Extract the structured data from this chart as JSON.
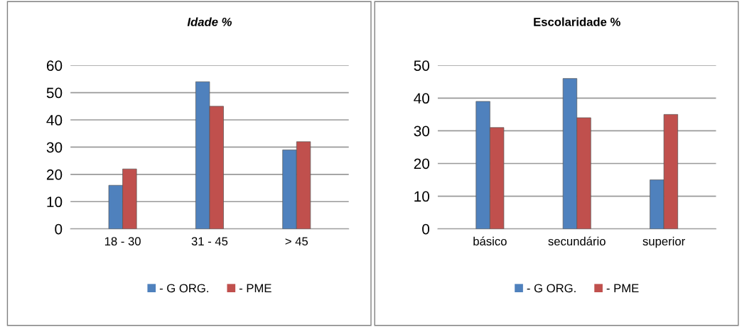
{
  "chart_data": [
    {
      "type": "bar",
      "title": "Idade %",
      "categories": [
        "18 - 30",
        "31 - 45",
        "> 45"
      ],
      "series": [
        {
          "name": "- G ORG.",
          "color": "#4f81bd",
          "values": [
            16,
            54,
            29
          ]
        },
        {
          "name": "- PME",
          "color": "#c0504d",
          "values": [
            22,
            45,
            32
          ]
        }
      ],
      "ylim": [
        0,
        60
      ],
      "yticks": [
        0,
        10,
        20,
        30,
        40,
        50,
        60
      ],
      "grid": "y",
      "legend": "bottom"
    },
    {
      "type": "bar",
      "title": "Escolaridade %",
      "categories": [
        "básico",
        "secundário",
        "superior"
      ],
      "series": [
        {
          "name": "- G ORG.",
          "color": "#4f81bd",
          "values": [
            39,
            46,
            15
          ]
        },
        {
          "name": "- PME",
          "color": "#c0504d",
          "values": [
            31,
            34,
            35
          ]
        }
      ],
      "ylim": [
        0,
        50
      ],
      "yticks": [
        0,
        10,
        20,
        30,
        40,
        50
      ],
      "grid": "y",
      "legend": "bottom"
    }
  ]
}
